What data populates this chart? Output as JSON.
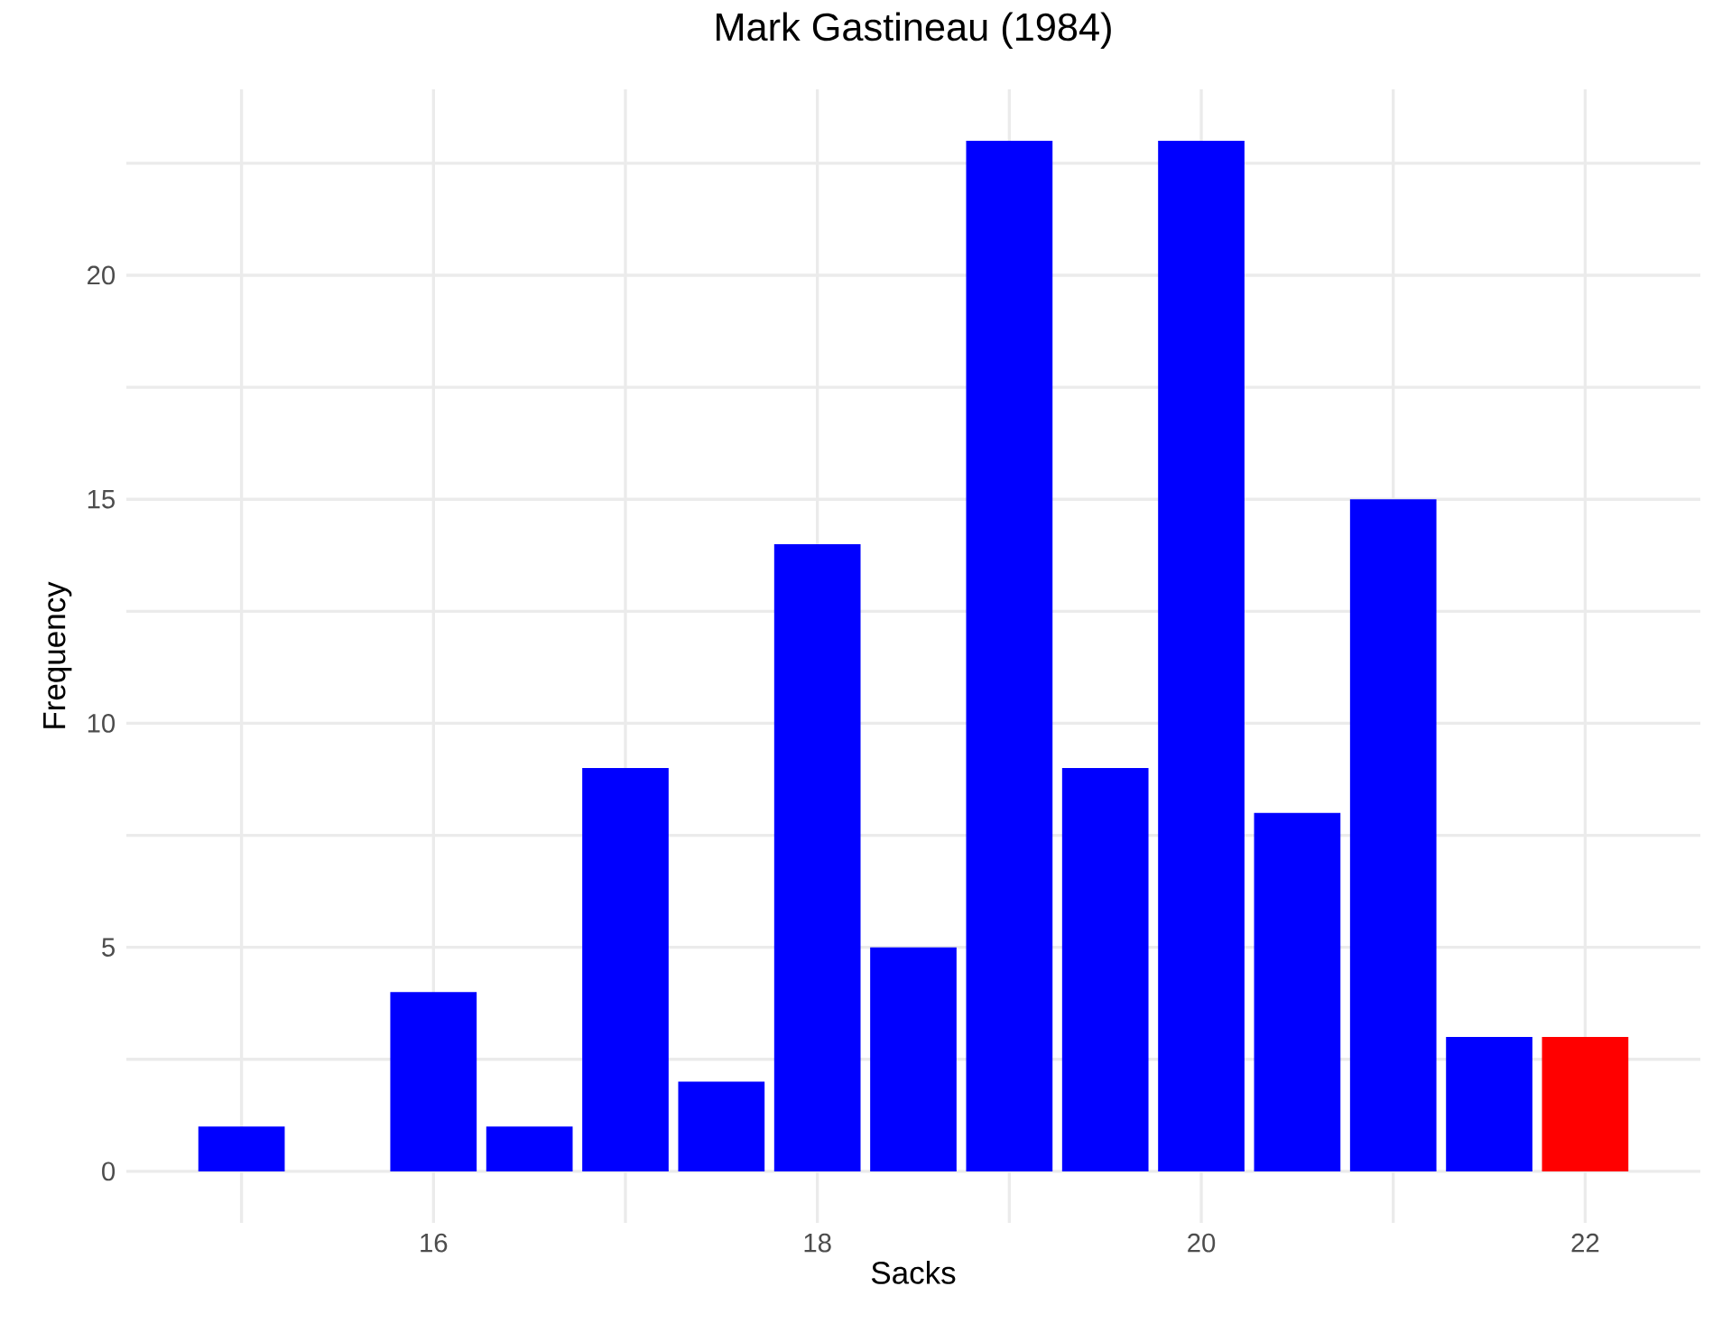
{
  "chart_data": {
    "type": "bar",
    "title": "Mark Gastineau (1984)",
    "xlabel": "Sacks",
    "ylabel": "Frequency",
    "x": [
      15,
      16,
      16.5,
      17,
      17.5,
      18,
      18.5,
      19,
      19.5,
      20,
      20.5,
      21,
      21.5,
      22
    ],
    "values": [
      1,
      4,
      1,
      9,
      2,
      14,
      5,
      23,
      9,
      23,
      8,
      15,
      3,
      3
    ],
    "colors": [
      "#0000ff",
      "#0000ff",
      "#0000ff",
      "#0000ff",
      "#0000ff",
      "#0000ff",
      "#0000ff",
      "#0000ff",
      "#0000ff",
      "#0000ff",
      "#0000ff",
      "#0000ff",
      "#0000ff",
      "#ff0000"
    ],
    "xlim": [
      14.4,
      22.6
    ],
    "ylim": [
      -1.15,
      24.15
    ],
    "xticks": [
      {
        "value": 15,
        "label": null
      },
      16,
      {
        "value": 17,
        "label": null
      },
      18,
      {
        "value": 19,
        "label": null
      },
      20,
      {
        "value": 21,
        "label": null
      },
      22
    ],
    "yticks": [
      0,
      {
        "value": 2.5,
        "label": null
      },
      5,
      {
        "value": 7.5,
        "label": null
      },
      10,
      {
        "value": 12.5,
        "label": null
      },
      15,
      {
        "value": 17.5,
        "label": null
      },
      20,
      {
        "value": 22.5,
        "label": null
      }
    ],
    "grid": true
  }
}
